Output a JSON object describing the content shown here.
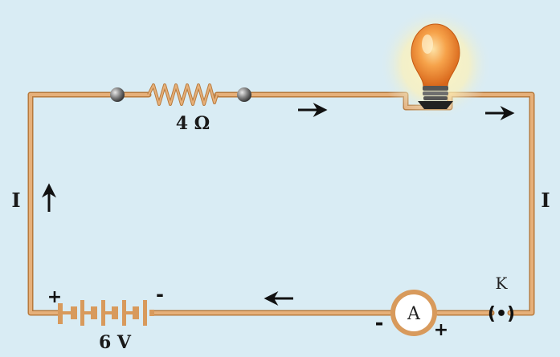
{
  "colors": {
    "background": "#d9ecf4",
    "wire": "#d89a5c",
    "wire_edge": "#b87a3c",
    "arrow": "#111111",
    "bulb_glow": "#fff3b0",
    "bulb_glass": "#f08a2a"
  },
  "resistor": {
    "label": "4 Ω"
  },
  "battery": {
    "label": "6 V",
    "plus": "+",
    "minus": "-"
  },
  "ammeter": {
    "letter": "A",
    "minus": "-",
    "plus": "+"
  },
  "key": {
    "label": "K",
    "symbol": "(•)"
  },
  "current": {
    "left_label": "I",
    "right_label": "I"
  },
  "icons": {
    "bulb": "light-bulb-icon",
    "resistor": "resistor-icon",
    "battery": "battery-icon",
    "ammeter": "ammeter-icon",
    "key": "plug-key-icon",
    "arrow": "arrow-icon"
  }
}
